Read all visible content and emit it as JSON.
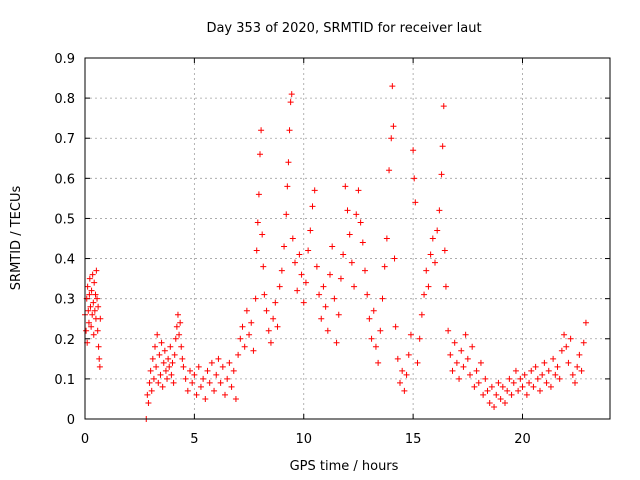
{
  "chart_data": {
    "type": "scatter",
    "title": "Day 353 of 2020, SRMTID for receiver laut",
    "xlabel": "GPS time / hours",
    "ylabel": "SRMTID / TECUs",
    "xlim": [
      0,
      24
    ],
    "ylim": [
      0,
      0.9
    ],
    "xticks": [
      0,
      5,
      10,
      15,
      20
    ],
    "xtick_labels": [
      "0",
      "5",
      "10",
      "15",
      "20"
    ],
    "yticks": [
      0,
      0.1,
      0.2,
      0.3,
      0.4,
      0.5,
      0.6,
      0.7,
      0.8,
      0.9
    ],
    "ytick_labels": [
      "0",
      "0.1",
      "0.2",
      "0.3",
      "0.4",
      "0.5",
      "0.6",
      "0.7",
      "0.8",
      "0.9"
    ],
    "grid": true,
    "marker": "plus",
    "color": "#ff0000",
    "series": [
      {
        "name": "SRMTID",
        "points": [
          [
            0.0,
            0.26
          ],
          [
            0.05,
            0.22
          ],
          [
            0.08,
            0.3
          ],
          [
            0.1,
            0.19
          ],
          [
            0.12,
            0.33
          ],
          [
            0.15,
            0.27
          ],
          [
            0.18,
            0.24
          ],
          [
            0.2,
            0.31
          ],
          [
            0.22,
            0.35
          ],
          [
            0.25,
            0.28
          ],
          [
            0.28,
            0.23
          ],
          [
            0.3,
            0.32
          ],
          [
            0.33,
            0.26
          ],
          [
            0.35,
            0.36
          ],
          [
            0.38,
            0.29
          ],
          [
            0.4,
            0.21
          ],
          [
            0.42,
            0.34
          ],
          [
            0.45,
            0.27
          ],
          [
            0.48,
            0.31
          ],
          [
            0.5,
            0.25
          ],
          [
            0.52,
            0.37
          ],
          [
            0.55,
            0.3
          ],
          [
            0.58,
            0.22
          ],
          [
            0.6,
            0.28
          ],
          [
            0.62,
            0.18
          ],
          [
            0.65,
            0.15
          ],
          [
            0.68,
            0.13
          ],
          [
            0.7,
            0.25
          ],
          [
            2.8,
            0.0
          ],
          [
            2.85,
            0.06
          ],
          [
            2.9,
            0.04
          ],
          [
            2.95,
            0.09
          ],
          [
            3.0,
            0.12
          ],
          [
            3.05,
            0.07
          ],
          [
            3.1,
            0.15
          ],
          [
            3.15,
            0.1
          ],
          [
            3.2,
            0.18
          ],
          [
            3.25,
            0.13
          ],
          [
            3.3,
            0.21
          ],
          [
            3.35,
            0.09
          ],
          [
            3.4,
            0.16
          ],
          [
            3.45,
            0.11
          ],
          [
            3.5,
            0.19
          ],
          [
            3.55,
            0.08
          ],
          [
            3.6,
            0.14
          ],
          [
            3.65,
            0.17
          ],
          [
            3.7,
            0.12
          ],
          [
            3.75,
            0.1
          ],
          [
            3.8,
            0.15
          ],
          [
            3.85,
            0.13
          ],
          [
            3.9,
            0.18
          ],
          [
            3.95,
            0.11
          ],
          [
            4.0,
            0.14
          ],
          [
            4.05,
            0.09
          ],
          [
            4.1,
            0.16
          ],
          [
            4.15,
            0.2
          ],
          [
            4.2,
            0.23
          ],
          [
            4.25,
            0.26
          ],
          [
            4.3,
            0.21
          ],
          [
            4.35,
            0.24
          ],
          [
            4.4,
            0.18
          ],
          [
            4.45,
            0.15
          ],
          [
            4.5,
            0.13
          ],
          [
            4.6,
            0.1
          ],
          [
            4.7,
            0.07
          ],
          [
            4.8,
            0.12
          ],
          [
            4.9,
            0.09
          ],
          [
            5.0,
            0.11
          ],
          [
            5.1,
            0.06
          ],
          [
            5.2,
            0.13
          ],
          [
            5.3,
            0.08
          ],
          [
            5.4,
            0.1
          ],
          [
            5.5,
            0.05
          ],
          [
            5.6,
            0.12
          ],
          [
            5.7,
            0.09
          ],
          [
            5.8,
            0.14
          ],
          [
            5.9,
            0.07
          ],
          [
            6.0,
            0.11
          ],
          [
            6.1,
            0.15
          ],
          [
            6.2,
            0.09
          ],
          [
            6.3,
            0.13
          ],
          [
            6.4,
            0.06
          ],
          [
            6.5,
            0.1
          ],
          [
            6.6,
            0.14
          ],
          [
            6.7,
            0.08
          ],
          [
            6.8,
            0.12
          ],
          [
            6.9,
            0.05
          ],
          [
            7.0,
            0.16
          ],
          [
            7.1,
            0.2
          ],
          [
            7.2,
            0.23
          ],
          [
            7.3,
            0.18
          ],
          [
            7.4,
            0.27
          ],
          [
            7.5,
            0.21
          ],
          [
            7.6,
            0.24
          ],
          [
            7.7,
            0.17
          ],
          [
            7.8,
            0.3
          ],
          [
            7.85,
            0.42
          ],
          [
            7.9,
            0.49
          ],
          [
            7.95,
            0.56
          ],
          [
            8.0,
            0.66
          ],
          [
            8.05,
            0.72
          ],
          [
            8.1,
            0.46
          ],
          [
            8.15,
            0.38
          ],
          [
            8.2,
            0.31
          ],
          [
            8.3,
            0.27
          ],
          [
            8.4,
            0.22
          ],
          [
            8.5,
            0.19
          ],
          [
            8.6,
            0.25
          ],
          [
            8.7,
            0.29
          ],
          [
            8.8,
            0.23
          ],
          [
            8.9,
            0.33
          ],
          [
            9.0,
            0.37
          ],
          [
            9.1,
            0.43
          ],
          [
            9.2,
            0.51
          ],
          [
            9.25,
            0.58
          ],
          [
            9.3,
            0.64
          ],
          [
            9.35,
            0.72
          ],
          [
            9.4,
            0.79
          ],
          [
            9.45,
            0.81
          ],
          [
            9.5,
            0.45
          ],
          [
            9.6,
            0.39
          ],
          [
            9.7,
            0.32
          ],
          [
            9.8,
            0.41
          ],
          [
            9.9,
            0.36
          ],
          [
            10.0,
            0.29
          ],
          [
            10.1,
            0.34
          ],
          [
            10.2,
            0.42
          ],
          [
            10.3,
            0.47
          ],
          [
            10.4,
            0.53
          ],
          [
            10.5,
            0.57
          ],
          [
            10.6,
            0.38
          ],
          [
            10.7,
            0.31
          ],
          [
            10.8,
            0.25
          ],
          [
            10.9,
            0.33
          ],
          [
            11.0,
            0.28
          ],
          [
            11.1,
            0.22
          ],
          [
            11.2,
            0.36
          ],
          [
            11.3,
            0.43
          ],
          [
            11.4,
            0.3
          ],
          [
            11.5,
            0.19
          ],
          [
            11.6,
            0.26
          ],
          [
            11.7,
            0.35
          ],
          [
            11.8,
            0.41
          ],
          [
            11.9,
            0.58
          ],
          [
            12.0,
            0.52
          ],
          [
            12.1,
            0.46
          ],
          [
            12.2,
            0.39
          ],
          [
            12.3,
            0.33
          ],
          [
            12.4,
            0.51
          ],
          [
            12.5,
            0.57
          ],
          [
            12.6,
            0.49
          ],
          [
            12.7,
            0.44
          ],
          [
            12.8,
            0.37
          ],
          [
            12.9,
            0.31
          ],
          [
            13.0,
            0.25
          ],
          [
            13.1,
            0.2
          ],
          [
            13.2,
            0.27
          ],
          [
            13.3,
            0.18
          ],
          [
            13.4,
            0.14
          ],
          [
            13.5,
            0.22
          ],
          [
            13.6,
            0.3
          ],
          [
            13.7,
            0.38
          ],
          [
            13.8,
            0.45
          ],
          [
            13.9,
            0.62
          ],
          [
            14.0,
            0.7
          ],
          [
            14.05,
            0.83
          ],
          [
            14.1,
            0.73
          ],
          [
            14.15,
            0.4
          ],
          [
            14.2,
            0.23
          ],
          [
            14.3,
            0.15
          ],
          [
            14.4,
            0.09
          ],
          [
            14.5,
            0.12
          ],
          [
            14.6,
            0.07
          ],
          [
            14.7,
            0.11
          ],
          [
            14.8,
            0.16
          ],
          [
            14.9,
            0.21
          ],
          [
            15.0,
            0.67
          ],
          [
            15.05,
            0.6
          ],
          [
            15.1,
            0.54
          ],
          [
            15.2,
            0.14
          ],
          [
            15.3,
            0.2
          ],
          [
            15.4,
            0.26
          ],
          [
            15.5,
            0.31
          ],
          [
            15.6,
            0.37
          ],
          [
            15.7,
            0.33
          ],
          [
            15.8,
            0.41
          ],
          [
            15.9,
            0.45
          ],
          [
            16.0,
            0.39
          ],
          [
            16.1,
            0.47
          ],
          [
            16.2,
            0.52
          ],
          [
            16.3,
            0.61
          ],
          [
            16.35,
            0.68
          ],
          [
            16.4,
            0.78
          ],
          [
            16.45,
            0.42
          ],
          [
            16.5,
            0.33
          ],
          [
            16.6,
            0.22
          ],
          [
            16.7,
            0.16
          ],
          [
            16.8,
            0.12
          ],
          [
            16.9,
            0.19
          ],
          [
            17.0,
            0.14
          ],
          [
            17.1,
            0.1
          ],
          [
            17.2,
            0.17
          ],
          [
            17.3,
            0.13
          ],
          [
            17.4,
            0.21
          ],
          [
            17.5,
            0.15
          ],
          [
            17.6,
            0.11
          ],
          [
            17.7,
            0.18
          ],
          [
            17.8,
            0.08
          ],
          [
            17.9,
            0.12
          ],
          [
            18.0,
            0.09
          ],
          [
            18.1,
            0.14
          ],
          [
            18.2,
            0.06
          ],
          [
            18.3,
            0.1
          ],
          [
            18.4,
            0.07
          ],
          [
            18.5,
            0.04
          ],
          [
            18.6,
            0.08
          ],
          [
            18.7,
            0.03
          ],
          [
            18.8,
            0.06
          ],
          [
            18.9,
            0.09
          ],
          [
            19.0,
            0.05
          ],
          [
            19.1,
            0.08
          ],
          [
            19.2,
            0.04
          ],
          [
            19.3,
            0.07
          ],
          [
            19.4,
            0.1
          ],
          [
            19.5,
            0.06
          ],
          [
            19.6,
            0.09
          ],
          [
            19.7,
            0.12
          ],
          [
            19.8,
            0.07
          ],
          [
            19.9,
            0.1
          ],
          [
            20.0,
            0.08
          ],
          [
            20.1,
            0.11
          ],
          [
            20.2,
            0.06
          ],
          [
            20.3,
            0.09
          ],
          [
            20.4,
            0.12
          ],
          [
            20.5,
            0.08
          ],
          [
            20.6,
            0.13
          ],
          [
            20.7,
            0.1
          ],
          [
            20.8,
            0.07
          ],
          [
            20.9,
            0.11
          ],
          [
            21.0,
            0.14
          ],
          [
            21.1,
            0.09
          ],
          [
            21.2,
            0.12
          ],
          [
            21.3,
            0.08
          ],
          [
            21.4,
            0.15
          ],
          [
            21.5,
            0.11
          ],
          [
            21.6,
            0.13
          ],
          [
            21.7,
            0.1
          ],
          [
            21.8,
            0.17
          ],
          [
            21.9,
            0.21
          ],
          [
            22.0,
            0.18
          ],
          [
            22.1,
            0.14
          ],
          [
            22.2,
            0.2
          ],
          [
            22.3,
            0.11
          ],
          [
            22.4,
            0.09
          ],
          [
            22.5,
            0.13
          ],
          [
            22.6,
            0.16
          ],
          [
            22.7,
            0.12
          ],
          [
            22.8,
            0.19
          ],
          [
            22.9,
            0.24
          ]
        ]
      }
    ]
  }
}
